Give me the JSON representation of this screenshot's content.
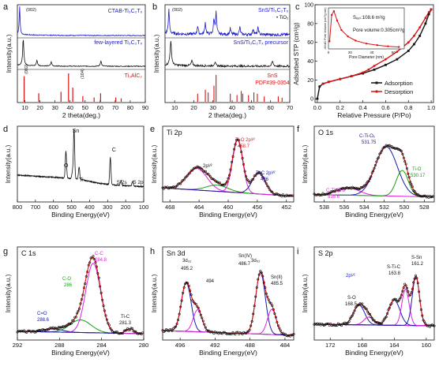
{
  "panels": {
    "a": {
      "letter": "a",
      "xlabel": "2 theta(deg.)",
      "ylabel": "Intensity(a.u.)",
      "xlim": [
        5,
        90
      ],
      "xticks": [
        10,
        20,
        30,
        40,
        50,
        60,
        70,
        80,
        90
      ],
      "labels": {
        "ctab": "CTAB-Ti₃C₂Tₓ",
        "few": "few-layered Ti₃C₂Tₓ",
        "max": "Ti₃AlC₂",
        "p002a": "(002)",
        "p002b": "(002)",
        "p104": "(104)"
      }
    },
    "b": {
      "letter": "b",
      "xlabel": "2 theta(deg.)",
      "ylabel": "Intensity(a.u.)",
      "xlim": [
        5,
        70
      ],
      "xticks": [
        10,
        20,
        30,
        40,
        50,
        60,
        70
      ],
      "labels": {
        "composite": "SnS/Ti₃C₂Tₓ",
        "tio2": "• TiO₂",
        "precursor": "SnS/Ti₃C₂Tₓ precursor",
        "sns": "SnS",
        "pdf": "PDF#39-0354",
        "p002": "(002)"
      }
    },
    "c": {
      "letter": "c",
      "xlabel": "Relative Pressure (P/Po)",
      "ylabel": "Adsorbed STP (cm³/g)",
      "xticks": [
        0.0,
        0.2,
        0.4,
        0.6,
        0.8,
        1.0
      ],
      "yticks": [
        0,
        20,
        40,
        60,
        80,
        100
      ],
      "legend": [
        "Adsorption",
        "Desorption"
      ],
      "inset": {
        "sbet": "Sₑₑₜ:108.6 m²/g",
        "pore": "Pore volume:0.305cm³/g",
        "xlabel": "Pore Diameter (nm)",
        "ylabel": "dV/dD Pore Volume (cm³/g·nm)",
        "xticks": [
          0,
          20,
          40,
          60
        ]
      }
    },
    "d": {
      "letter": "d",
      "xlabel": "Binding Energy(eV)",
      "ylabel": "Intensity(a.u.)",
      "xticks": [
        800,
        700,
        600,
        500,
        400,
        300,
        200,
        100
      ],
      "labels": {
        "o": "O",
        "sn": "Sn",
        "ti": "Ti",
        "c": "C",
        "s2s": "S 2s",
        "s2p": "S 2p"
      }
    },
    "e": {
      "letter": "e",
      "title": "Ti 2p",
      "xlabel": "Binding Energy(eV)",
      "ylabel": "Intensity(a.u.)",
      "xticks": [
        468,
        464,
        460,
        456,
        452
      ],
      "labels": {
        "tio": "Ti-O 2p³⁄²",
        "tio_v": "458.7",
        "tic": "Ti-C 2p³⁄²",
        "tic_v": "456",
        "p12": "2p¹⁄²"
      }
    },
    "f": {
      "letter": "f",
      "title": "O 1s",
      "xlabel": "Binding Energy(eV)",
      "ylabel": "Intensity(a.u.)",
      "xticks": [
        538,
        536,
        534,
        532,
        530,
        528
      ],
      "labels": {
        "ctio": "C-Ti-Oₓ",
        "ctio_v": "531.75",
        "tio": "Ti-O",
        "tio_v": "530.17",
        "ctioh": "C-Ti-OHₓ",
        "ctioh_v": "535.6"
      }
    },
    "g": {
      "letter": "g",
      "title": "C 1s",
      "xlabel": "Binding Energy(eV)",
      "ylabel": "Intensity(a.u.)",
      "xticks": [
        292,
        288,
        284,
        280
      ],
      "labels": {
        "cc": "C-C",
        "cc_v": "284.8",
        "co": "C-O",
        "co_v": "286",
        "ceo": "C=O",
        "ceo_v": "288.6",
        "tic": "Ti-C",
        "tic_v": "281.3"
      }
    },
    "h": {
      "letter": "h",
      "title": "Sn 3d",
      "xlabel": "Binding Energy(eV)",
      "ylabel": "Intensity(a.u.)",
      "xticks": [
        496,
        492,
        488,
        484
      ],
      "labels": {
        "d32": "3d₃₂",
        "d52": "3d₅₂",
        "v4952": "495.2",
        "v494": "494",
        "sniv": "Sn(IV)",
        "sniv_v": "486.7",
        "snii": "Sn(II)",
        "snii_v": "485.5"
      }
    },
    "i": {
      "letter": "i",
      "title": "S 2p",
      "xlabel": "Binding Energy(eV)",
      "ylabel": "Intensity(a.u.)",
      "xticks": [
        172,
        168,
        164,
        160
      ],
      "labels": {
        "p12": "2p¹⁄²",
        "stic": "S-Ti-C",
        "stic_v": "163.8",
        "ssn": "S-Sn",
        "ssn_v": "161.2",
        "so": "S-O",
        "so_v": "168.5"
      }
    }
  },
  "chart_data": [
    {
      "panel": "a",
      "type": "line",
      "series": [
        {
          "name": "CTAB-Ti₃C₂Tₓ",
          "peaks": [
            [
              6.5,
              1.0
            ]
          ]
        },
        {
          "name": "few-layered Ti₃C₂Tₓ",
          "peaks": [
            [
              8.9,
              1.0
            ],
            [
              18.0,
              0.2
            ],
            [
              27.5,
              0.15
            ],
            [
              60.5,
              0.2
            ]
          ]
        },
        {
          "name": "Ti₃AlC₂",
          "peaks": [
            [
              9.5,
              0.9
            ],
            [
              19.2,
              0.3
            ],
            [
              34.0,
              0.35
            ],
            [
              39.0,
              1.0
            ],
            [
              41.8,
              0.5
            ],
            [
              48.5,
              0.2
            ],
            [
              56.0,
              0.15
            ],
            [
              60.3,
              0.3
            ],
            [
              70.4,
              0.15
            ],
            [
              74.0,
              0.12
            ]
          ]
        }
      ]
    },
    {
      "panel": "b",
      "type": "line",
      "series": [
        {
          "name": "SnS/Ti₃C₂Tₓ",
          "peaks": [
            [
              7.0,
              1.0
            ],
            [
              22.0,
              0.35
            ],
            [
              26.0,
              0.5
            ],
            [
              30.5,
              0.6
            ],
            [
              31.6,
              0.9
            ],
            [
              39.0,
              0.25
            ],
            [
              44.0,
              0.3
            ],
            [
              51.0,
              0.25
            ],
            [
              53.5,
              0.3
            ]
          ]
        },
        {
          "name": "SnS/Ti₃C₂Tₓ precursor",
          "peaks": [
            [
              8.0,
              1.0
            ],
            [
              19.0,
              0.2
            ],
            [
              31.0,
              0.15
            ],
            [
              61.0,
              0.2
            ]
          ]
        },
        {
          "name": "SnS PDF#39-0354",
          "sticks": [
            [
              22.0,
              0.3
            ],
            [
              26.0,
              0.45
            ],
            [
              27.5,
              0.35
            ],
            [
              30.5,
              0.6
            ],
            [
              31.6,
              1.0
            ],
            [
              39.0,
              0.3
            ],
            [
              42.5,
              0.25
            ],
            [
              44.7,
              0.4
            ],
            [
              45.5,
              0.3
            ],
            [
              48.5,
              0.25
            ],
            [
              51.3,
              0.35
            ],
            [
              53.1,
              0.3
            ],
            [
              56.7,
              0.2
            ],
            [
              64.0,
              0.2
            ],
            [
              66.0,
              0.15
            ]
          ]
        }
      ]
    },
    {
      "panel": "c",
      "type": "line",
      "series": [
        {
          "name": "Adsorption",
          "x": [
            0.0,
            0.02,
            0.05,
            0.1,
            0.2,
            0.3,
            0.4,
            0.5,
            0.6,
            0.7,
            0.8,
            0.85,
            0.9,
            0.95,
            0.98,
            1.0
          ],
          "y": [
            0,
            13,
            16,
            18,
            21,
            24,
            27,
            31,
            36,
            42,
            51,
            58,
            67,
            80,
            90,
            95
          ]
        },
        {
          "name": "Desorption",
          "x": [
            1.0,
            0.98,
            0.95,
            0.9,
            0.85,
            0.8,
            0.7,
            0.6,
            0.5,
            0.45,
            0.4,
            0.3,
            0.2,
            0.1,
            0.05
          ],
          "y": [
            95,
            92,
            86,
            76,
            67,
            60,
            50,
            42,
            35,
            31,
            28,
            24,
            21,
            18,
            16
          ]
        }
      ],
      "inset": {
        "type": "line",
        "x": [
          1,
          3,
          5,
          8,
          12,
          18,
          25,
          35,
          45,
          55,
          65
        ],
        "y": [
          0.2,
          0.9,
          1.0,
          0.75,
          0.5,
          0.33,
          0.22,
          0.14,
          0.1,
          0.07,
          0.05
        ]
      }
    },
    {
      "panel": "d",
      "type": "line",
      "peaks": [
        [
          531,
          0.55,
          "O"
        ],
        [
          486,
          1.0,
          "Sn"
        ],
        [
          458,
          0.25,
          "Ti"
        ],
        [
          285,
          0.55,
          "C"
        ],
        [
          226,
          0.1,
          "S 2s"
        ],
        [
          162,
          0.1,
          "S 2p"
        ]
      ]
    },
    {
      "panel": "e",
      "type": "line",
      "components": [
        [
          464.3,
          0.4,
          "2p¹⁄²"
        ],
        [
          458.7,
          1.0,
          "Ti-O 2p³⁄²"
        ],
        [
          456.0,
          0.4,
          "Ti-C 2p³⁄²"
        ]
      ]
    },
    {
      "panel": "f",
      "type": "line",
      "components": [
        [
          535.6,
          0.15,
          "C-Ti-OHₓ"
        ],
        [
          531.75,
          1.0,
          "C-Ti-Oₓ"
        ],
        [
          530.17,
          0.5,
          "Ti-O"
        ]
      ]
    },
    {
      "panel": "g",
      "type": "line",
      "components": [
        [
          288.6,
          0.05,
          "C=O"
        ],
        [
          286.0,
          0.2,
          "C-O"
        ],
        [
          284.8,
          1.0,
          "C-C"
        ],
        [
          281.3,
          0.1,
          "Ti-C"
        ]
      ]
    },
    {
      "panel": "h",
      "type": "line",
      "components": [
        [
          495.2,
          0.8,
          "3d₃₂"
        ],
        [
          494.0,
          0.3,
          ""
        ],
        [
          486.7,
          1.0,
          "Sn(IV) 3d₅₂"
        ],
        [
          485.5,
          0.45,
          "Sn(II)"
        ]
      ]
    },
    {
      "panel": "i",
      "type": "line",
      "components": [
        [
          168.5,
          0.3,
          "S-O"
        ],
        [
          163.8,
          0.45,
          "S-Ti-C"
        ],
        [
          162.4,
          0.6,
          "2p¹⁄²"
        ],
        [
          161.2,
          1.0,
          "S-Sn"
        ]
      ]
    }
  ],
  "colors": {
    "black": "#111111",
    "blue": "#1a1acc",
    "red": "#dd1111",
    "magenta": "#e020e0",
    "green": "#10a010",
    "navy": "#1818b0",
    "fit": "#c43030"
  }
}
